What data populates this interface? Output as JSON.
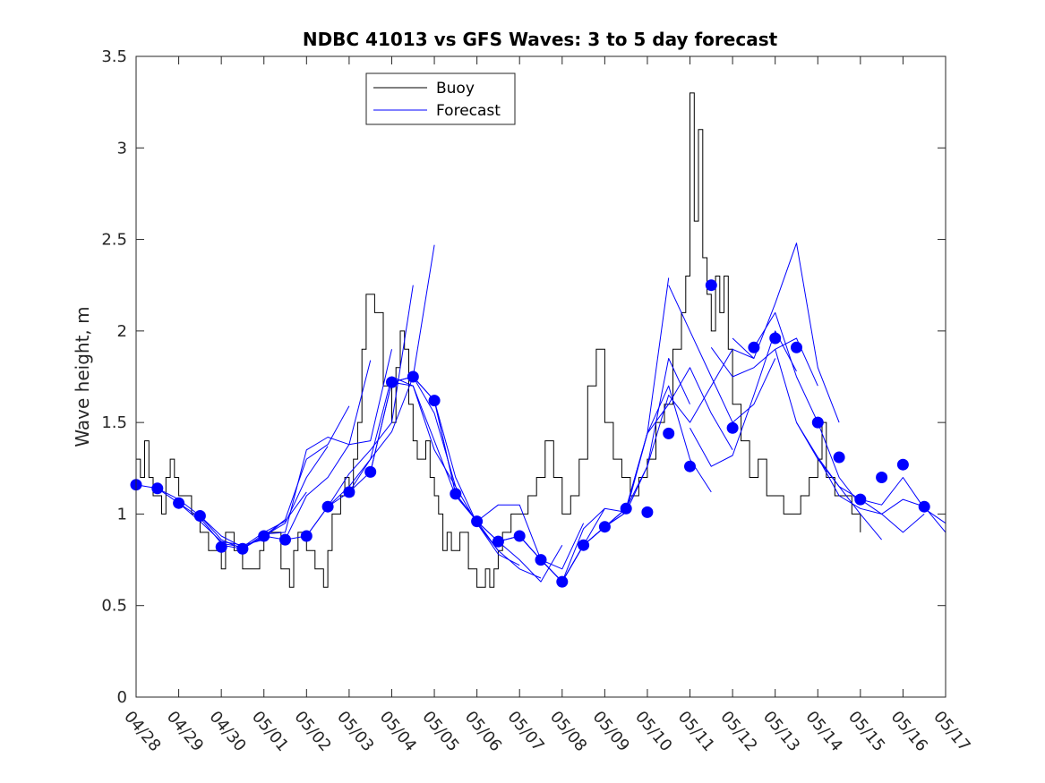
{
  "chart_data": {
    "type": "line",
    "title": "NDBC 41013 vs GFS Waves: 3 to 5 day forecast",
    "xlabel": "",
    "ylabel": "Wave height, m",
    "xlim": [
      "04/28",
      "05/17"
    ],
    "ylim": [
      0,
      3.5
    ],
    "yticks": [
      "0",
      "0.5",
      "1",
      "1.5",
      "2",
      "2.5",
      "3",
      "3.5"
    ],
    "xticks": [
      "04/28",
      "04/29",
      "04/30",
      "05/01",
      "05/02",
      "05/03",
      "05/04",
      "05/05",
      "05/06",
      "05/07",
      "05/08",
      "05/09",
      "05/10",
      "05/11",
      "05/12",
      "05/13",
      "05/14",
      "05/15",
      "05/16",
      "05/17"
    ],
    "grid": false,
    "legend": {
      "placement": "top-left",
      "entries": [
        "Buoy",
        "Forecast"
      ]
    },
    "colors": {
      "buoy": "#000000",
      "forecast": "#0000ff",
      "markers": "#0000ff"
    },
    "series": [
      {
        "name": "Buoy",
        "x_days": [
          0.0,
          0.1,
          0.2,
          0.3,
          0.4,
          0.5,
          0.6,
          0.7,
          0.8,
          0.9,
          1.0,
          1.1,
          1.3,
          1.5,
          1.7,
          1.9,
          2.0,
          2.1,
          2.3,
          2.5,
          2.7,
          2.9,
          3.0,
          3.2,
          3.4,
          3.6,
          3.7,
          3.8,
          4.0,
          4.2,
          4.4,
          4.5,
          4.6,
          4.8,
          4.9,
          5.0,
          5.1,
          5.2,
          5.3,
          5.4,
          5.6,
          5.8,
          6.0,
          6.1,
          6.2,
          6.3,
          6.4,
          6.5,
          6.6,
          6.8,
          6.9,
          7.0,
          7.1,
          7.2,
          7.3,
          7.4,
          7.6,
          7.8,
          8.0,
          8.2,
          8.3,
          8.4,
          8.5,
          8.6,
          8.8,
          9.0,
          9.2,
          9.4,
          9.6,
          9.8,
          10.0,
          10.2,
          10.4,
          10.6,
          10.8,
          11.0,
          11.2,
          11.4,
          11.6,
          11.8,
          12.0,
          12.2,
          12.4,
          12.6,
          12.8,
          12.9,
          13.0,
          13.1,
          13.2,
          13.3,
          13.4,
          13.5,
          13.6,
          13.7,
          13.8,
          13.9,
          14.0,
          14.2,
          14.4,
          14.6,
          14.8,
          15.0,
          15.2,
          15.4,
          15.6,
          15.8,
          16.0,
          16.1,
          16.2,
          16.4,
          16.6,
          16.8,
          17.0
        ],
        "values": [
          1.3,
          1.2,
          1.4,
          1.2,
          1.1,
          1.1,
          1.0,
          1.2,
          1.3,
          1.2,
          1.1,
          1.1,
          1.0,
          0.9,
          0.8,
          0.8,
          0.7,
          0.9,
          0.8,
          0.7,
          0.7,
          0.8,
          0.9,
          0.9,
          0.7,
          0.6,
          0.8,
          0.9,
          0.8,
          0.7,
          0.6,
          0.8,
          1.0,
          1.1,
          1.2,
          1.1,
          1.3,
          1.5,
          1.9,
          2.2,
          2.1,
          1.7,
          1.5,
          1.8,
          2.0,
          1.9,
          1.6,
          1.4,
          1.3,
          1.4,
          1.2,
          1.1,
          1.0,
          0.8,
          0.9,
          0.8,
          0.9,
          0.7,
          0.6,
          0.7,
          0.6,
          0.7,
          0.8,
          0.9,
          1.0,
          1.0,
          1.1,
          1.2,
          1.4,
          1.2,
          1.0,
          1.1,
          1.3,
          1.7,
          1.9,
          1.5,
          1.3,
          1.2,
          1.1,
          1.2,
          1.3,
          1.5,
          1.6,
          1.9,
          2.1,
          2.3,
          3.3,
          2.6,
          3.1,
          2.4,
          2.2,
          2.0,
          2.3,
          2.1,
          2.3,
          1.9,
          1.6,
          1.4,
          1.2,
          1.3,
          1.1,
          1.1,
          1.0,
          1.0,
          1.1,
          1.2,
          1.3,
          1.5,
          1.2,
          1.1,
          1.1,
          1.0,
          0.9
        ]
      },
      {
        "name": "Forecast",
        "runs": [
          {
            "x_days": [
              0.0,
              0.5,
              1.0,
              1.5,
              2.0,
              2.5,
              3.0
            ],
            "values": [
              1.16,
              1.14,
              1.06,
              0.96,
              0.85,
              0.83,
              0.86
            ]
          },
          {
            "x_days": [
              0.5,
              1.0,
              1.5,
              2.0,
              2.5,
              3.0,
              3.5
            ],
            "values": [
              1.14,
              1.08,
              0.99,
              0.88,
              0.82,
              0.87,
              0.97
            ]
          },
          {
            "x_days": [
              1.0,
              1.5,
              2.0,
              2.5,
              3.0,
              3.5,
              4.0
            ],
            "values": [
              1.06,
              0.98,
              0.84,
              0.82,
              0.9,
              0.96,
              1.12
            ]
          },
          {
            "x_days": [
              1.5,
              2.0,
              2.5,
              3.0,
              3.5,
              4.0,
              4.5
            ],
            "values": [
              0.99,
              0.86,
              0.81,
              0.88,
              0.95,
              1.2,
              1.37
            ]
          },
          {
            "x_days": [
              2.0,
              2.5,
              3.0,
              3.5,
              4.0,
              4.5,
              5.0
            ],
            "values": [
              0.83,
              0.81,
              0.88,
              0.97,
              1.3,
              1.38,
              1.59
            ]
          },
          {
            "x_days": [
              2.5,
              3.0,
              3.5,
              4.0,
              4.5,
              5.0,
              5.5
            ],
            "values": [
              0.81,
              0.89,
              0.9,
              1.35,
              1.42,
              1.38,
              1.84
            ]
          },
          {
            "x_days": [
              3.0,
              3.5,
              4.0,
              4.5,
              5.0,
              5.5,
              6.0
            ],
            "values": [
              0.88,
              0.86,
              1.1,
              1.2,
              1.38,
              1.4,
              1.9
            ]
          },
          {
            "x_days": [
              3.5,
              4.0,
              4.5,
              5.0,
              5.5,
              6.0,
              6.5
            ],
            "values": [
              0.86,
              0.88,
              1.04,
              1.22,
              1.35,
              1.5,
              2.25
            ]
          },
          {
            "x_days": [
              4.0,
              4.5,
              5.0,
              5.5,
              6.0,
              6.5,
              7.0
            ],
            "values": [
              0.88,
              1.04,
              1.15,
              1.3,
              1.45,
              1.75,
              2.47
            ]
          },
          {
            "x_days": [
              4.5,
              5.0,
              5.5,
              6.0,
              6.5,
              7.0,
              7.5
            ],
            "values": [
              1.04,
              1.12,
              1.3,
              1.75,
              1.7,
              1.35,
              1.15
            ]
          },
          {
            "x_days": [
              5.0,
              5.5,
              6.0,
              6.5,
              7.0,
              7.5,
              8.0
            ],
            "values": [
              1.12,
              1.23,
              1.72,
              1.7,
              1.4,
              1.1,
              0.96
            ]
          },
          {
            "x_days": [
              5.5,
              6.0,
              6.5,
              7.0,
              7.5,
              8.0,
              8.5
            ],
            "values": [
              1.23,
              1.72,
              1.75,
              1.55,
              1.15,
              0.95,
              0.8
            ]
          },
          {
            "x_days": [
              6.0,
              6.5,
              7.0,
              7.5,
              8.0,
              8.5,
              9.0
            ],
            "values": [
              1.72,
              1.75,
              1.62,
              1.2,
              0.95,
              0.78,
              0.72
            ]
          },
          {
            "x_days": [
              6.5,
              7.0,
              7.5,
              8.0,
              8.5,
              9.0,
              9.5
            ],
            "values": [
              1.75,
              1.62,
              1.11,
              0.96,
              0.8,
              0.7,
              0.65
            ]
          },
          {
            "x_days": [
              7.0,
              7.5,
              8.0,
              8.5,
              9.0,
              9.5,
              10.0
            ],
            "values": [
              1.62,
              1.11,
              0.96,
              0.85,
              0.75,
              0.63,
              0.83
            ]
          },
          {
            "x_days": [
              7.5,
              8.0,
              8.5,
              9.0,
              9.5,
              10.0,
              10.5
            ],
            "values": [
              1.11,
              0.96,
              0.85,
              0.88,
              0.75,
              0.7,
              0.95
            ]
          },
          {
            "x_days": [
              8.0,
              8.5,
              9.0,
              9.5,
              10.0,
              10.5,
              11.0
            ],
            "values": [
              0.96,
              1.05,
              1.05,
              0.75,
              0.63,
              0.92,
              1.03
            ]
          },
          {
            "x_days": [
              8.5,
              9.0,
              9.5,
              10.0,
              10.5,
              11.0,
              11.5
            ],
            "values": [
              0.85,
              0.88,
              0.75,
              0.63,
              0.83,
              1.03,
              1.01
            ]
          },
          {
            "x_days": [
              9.0,
              9.5,
              10.0,
              10.5,
              11.0,
              11.5,
              12.0
            ],
            "values": [
              0.88,
              0.75,
              0.63,
              0.83,
              0.93,
              1.03,
              1.44
            ]
          },
          {
            "x_days": [
              9.5,
              10.0,
              10.5,
              11.0,
              11.5,
              12.0,
              12.5
            ],
            "values": [
              0.75,
              0.63,
              0.83,
              0.93,
              1.03,
              1.44,
              2.29
            ]
          },
          {
            "x_days": [
              10.0,
              10.5,
              11.0,
              11.5,
              12.0,
              12.5,
              13.0
            ],
            "values": [
              0.63,
              0.83,
              0.93,
              1.01,
              1.26,
              1.85,
              1.6
            ]
          },
          {
            "x_days": [
              10.5,
              11.0,
              11.5,
              12.0,
              12.5,
              13.0,
              13.5
            ],
            "values": [
              0.83,
              0.93,
              1.01,
              1.44,
              1.7,
              1.3,
              1.12
            ]
          },
          {
            "x_days": [
              11.0,
              11.5,
              12.0,
              12.5,
              13.0,
              13.5,
              14.0
            ],
            "values": [
              0.93,
              1.03,
              1.44,
              1.6,
              1.8,
              1.55,
              1.35
            ]
          },
          {
            "x_days": [
              11.5,
              12.0,
              12.5,
              13.0,
              13.5,
              14.0,
              14.5
            ],
            "values": [
              1.03,
              1.26,
              1.65,
              1.5,
              1.7,
              1.9,
              1.85
            ]
          },
          {
            "x_days": [
              12.5,
              13.0,
              13.5,
              14.0,
              14.5,
              15.0
            ],
            "values": [
              2.25,
              2.0,
              1.75,
              1.5,
              1.6,
              1.85
            ]
          },
          {
            "x_days": [
              13.0,
              13.5,
              14.0,
              14.5,
              15.0,
              15.5
            ],
            "values": [
              1.47,
              1.26,
              1.32,
              1.65,
              2.0,
              1.78
            ]
          },
          {
            "x_days": [
              13.5,
              14.0,
              14.5,
              15.0,
              15.5,
              16.0
            ],
            "values": [
              1.91,
              1.75,
              1.8,
              1.9,
              1.96,
              1.7
            ]
          },
          {
            "x_days": [
              14.0,
              14.5,
              15.0,
              15.5,
              16.0,
              16.5
            ],
            "values": [
              1.96,
              1.85,
              2.15,
              2.48,
              1.8,
              1.5
            ]
          },
          {
            "x_days": [
              14.5,
              15.0,
              15.5,
              16.0,
              16.5,
              17.0
            ],
            "values": [
              1.91,
              2.1,
              1.75,
              1.5,
              1.2,
              1.05
            ]
          },
          {
            "x_days": [
              15.0,
              15.5,
              16.0,
              16.5,
              17.0,
              17.5
            ],
            "values": [
              1.9,
              1.5,
              1.3,
              1.15,
              1.0,
              0.86
            ]
          },
          {
            "x_days": [
              15.5,
              16.0,
              16.5,
              17.0,
              17.5,
              18.0,
              18.5
            ],
            "values": [
              1.5,
              1.31,
              1.15,
              1.08,
              1.0,
              0.9,
              1.0
            ]
          },
          {
            "x_days": [
              16.0,
              16.5,
              17.0,
              17.5,
              18.0,
              18.5,
              19.0
            ],
            "values": [
              1.31,
              1.1,
              1.03,
              1.0,
              1.08,
              1.04,
              0.9
            ]
          },
          {
            "x_days": [
              17.0,
              17.5,
              18.0,
              18.5,
              19.0
            ],
            "values": [
              1.08,
              1.05,
              1.2,
              1.03,
              0.95
            ]
          }
        ]
      },
      {
        "name": "",
        "markers": true,
        "x_days": [
          0.0,
          0.5,
          1.0,
          1.5,
          2.0,
          2.5,
          3.0,
          3.5,
          4.0,
          4.5,
          5.0,
          5.5,
          6.0,
          6.5,
          7.0,
          7.5,
          8.0,
          8.5,
          9.0,
          9.5,
          10.0,
          10.5,
          11.0,
          11.5,
          12.0,
          12.5,
          13.0,
          13.5,
          14.0,
          14.5,
          15.0,
          15.5,
          16.0,
          16.5,
          17.0,
          17.5,
          18.0,
          18.5
        ],
        "values": [
          1.16,
          1.14,
          1.06,
          0.99,
          0.82,
          0.81,
          0.88,
          0.86,
          0.88,
          1.04,
          1.12,
          1.23,
          1.72,
          1.75,
          1.62,
          1.11,
          0.96,
          0.85,
          0.88,
          0.75,
          0.63,
          0.83,
          0.93,
          1.03,
          1.01,
          1.44,
          1.26,
          2.25,
          1.47,
          1.91,
          1.96,
          1.91,
          1.5,
          1.31,
          1.08,
          1.2,
          1.27,
          1.04
        ]
      }
    ]
  }
}
